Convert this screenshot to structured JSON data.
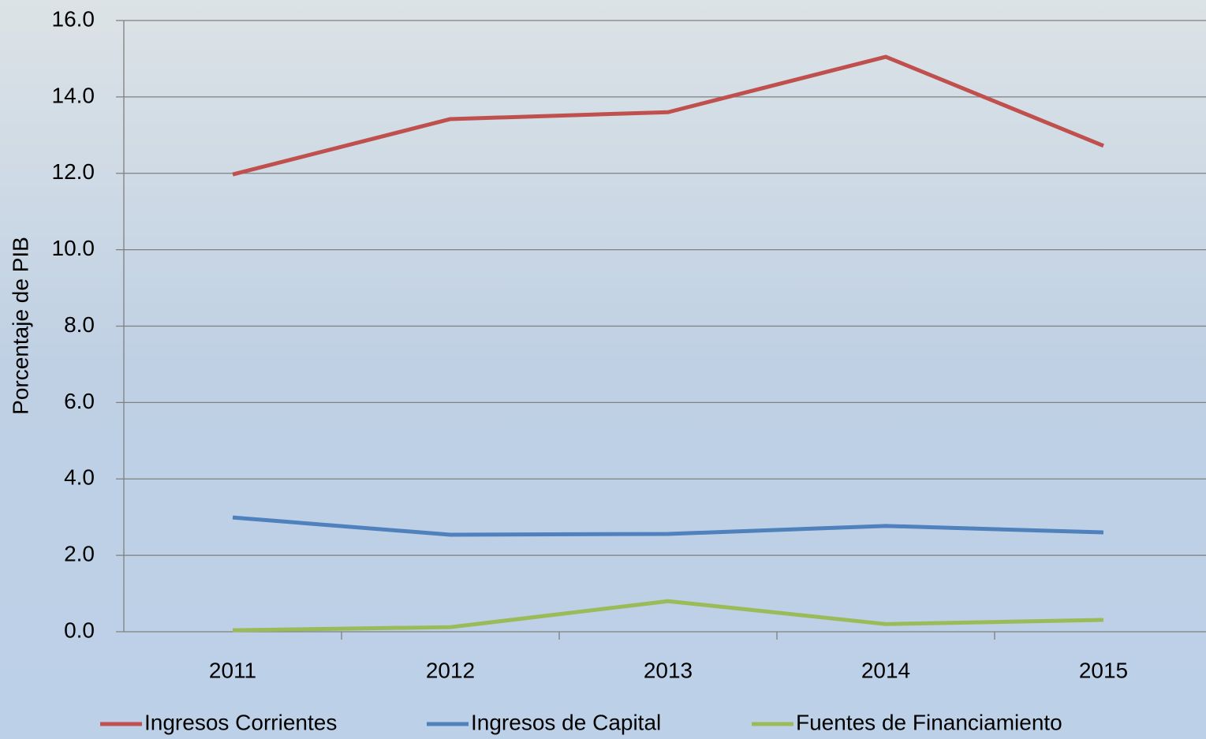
{
  "chart_data": {
    "type": "line",
    "y_label": "Porcentaje de PIB",
    "categories": [
      "2011",
      "2012",
      "2013",
      "2014",
      "2015"
    ],
    "series": [
      {
        "name": "Ingresos Corrientes",
        "color": "#c0504d",
        "values": [
          11.97,
          13.42,
          13.6,
          15.05,
          12.72
        ]
      },
      {
        "name": "Ingresos de Capital",
        "color": "#4f81bd",
        "values": [
          2.99,
          2.54,
          2.56,
          2.77,
          2.6
        ]
      },
      {
        "name": "Fuentes de Financiamiento",
        "color": "#9bbb59",
        "values": [
          0.04,
          0.12,
          0.8,
          0.2,
          0.31
        ]
      }
    ],
    "ylim": [
      0,
      16
    ],
    "yticks": [
      {
        "value": 0,
        "label": "0.0"
      },
      {
        "value": 2,
        "label": "2.0"
      },
      {
        "value": 4,
        "label": "4.0"
      },
      {
        "value": 6,
        "label": "6.0"
      },
      {
        "value": 8,
        "label": "8.0"
      },
      {
        "value": 10,
        "label": "10.0"
      },
      {
        "value": 12,
        "label": "12.0"
      },
      {
        "value": 14,
        "label": "14.0"
      },
      {
        "value": 16,
        "label": "16.0"
      }
    ],
    "grid": true,
    "legend": "bottom"
  }
}
